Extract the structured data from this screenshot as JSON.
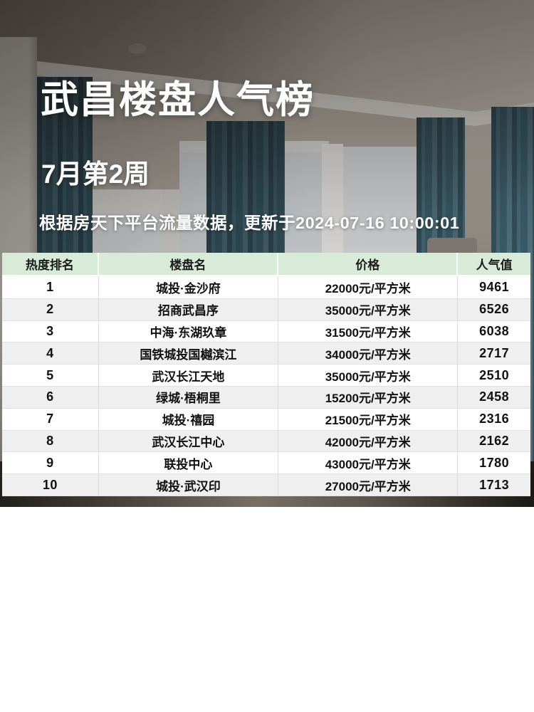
{
  "poster": {
    "title": "武昌楼盘人气榜",
    "period": "7月第2周",
    "source_note": "根据房天下平台流量数据，更新于2024-07-16 10:00:01"
  },
  "chart_data": {
    "type": "table",
    "title": "武昌楼盘人气榜",
    "subtitle": "7月第2周",
    "note": "根据房天下平台流量数据，更新于2024-07-16 10:00:01",
    "columns": [
      "热度排名",
      "楼盘名",
      "价格",
      "人气值"
    ],
    "rows": [
      [
        "1",
        "城投·金沙府",
        "22000元/平方米",
        "9461"
      ],
      [
        "2",
        "招商武昌序",
        "35000元/平方米",
        "6526"
      ],
      [
        "3",
        "中海·东湖玖章",
        "31500元/平方米",
        "6038"
      ],
      [
        "4",
        "国铁城投国樾滨江",
        "34000元/平方米",
        "2717"
      ],
      [
        "5",
        "武汉长江天地",
        "35000元/平方米",
        "2510"
      ],
      [
        "6",
        "绿城·梧桐里",
        "15200元/平方米",
        "2458"
      ],
      [
        "7",
        "城投·禧园",
        "21500元/平方米",
        "2316"
      ],
      [
        "8",
        "武汉长江中心",
        "42000元/平方米",
        "2162"
      ],
      [
        "9",
        "联投中心",
        "43000元/平方米",
        "1780"
      ],
      [
        "10",
        "城投·武汉印",
        "27000元/平方米",
        "1713"
      ]
    ]
  },
  "colors": {
    "header_bg": "#d7ebd8",
    "row_alt_bg": "#efefef",
    "text": "#111111",
    "headline_text": "#ffffff",
    "curtain_teal": "#34525e"
  }
}
